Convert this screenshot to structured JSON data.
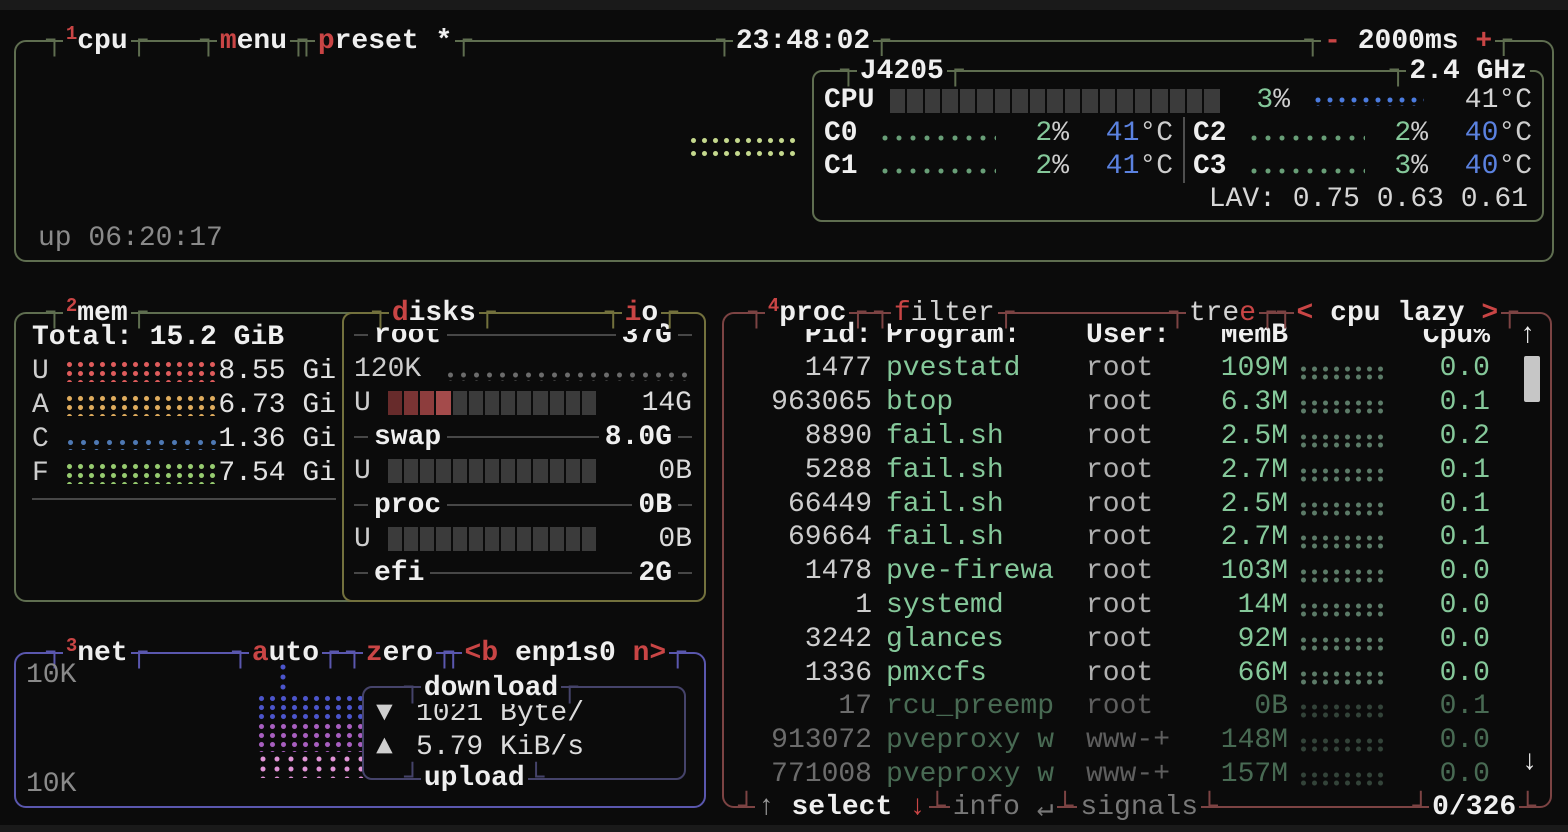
{
  "window": {
    "clock": "23:48:02",
    "interval_minus": "-",
    "interval_value": "2000ms",
    "interval_plus": "+"
  },
  "cpu_box": {
    "tab_key": "1",
    "tab_label": "cpu",
    "menu_hot": "m",
    "menu_rest": "enu",
    "preset_hot": "p",
    "preset_rest": "reset *",
    "uptime": "up 06:20:17",
    "model": "J4205",
    "frequency": "2.4 GHz",
    "total": {
      "label": "CPU",
      "percent_value": "3",
      "percent_sign": "%",
      "temp_value": "41",
      "temp_unit": "°C"
    },
    "cores": [
      {
        "label": "C0",
        "percent_value": "2",
        "percent_sign": "%",
        "temp_value": "41",
        "temp_unit": "°C"
      },
      {
        "label": "C1",
        "percent_value": "2",
        "percent_sign": "%",
        "temp_value": "41",
        "temp_unit": "°C"
      },
      {
        "label": "C2",
        "percent_value": "2",
        "percent_sign": "%",
        "temp_value": "40",
        "temp_unit": "°C"
      },
      {
        "label": "C3",
        "percent_value": "3",
        "percent_sign": "%",
        "temp_value": "40",
        "temp_unit": "°C"
      }
    ],
    "load_avg_label": "LAV:",
    "load_avg_values": "0.75 0.63 0.61"
  },
  "mem_box": {
    "tab_key": "2",
    "tab_label": "mem",
    "total_label": "Total:",
    "total_value": "15.2 GiB",
    "rows": [
      {
        "key": "U",
        "value": "8.55 Gi"
      },
      {
        "key": "A",
        "value": "6.73 Gi"
      },
      {
        "key": "C",
        "value": "1.36 Gi"
      },
      {
        "key": "F",
        "value": "7.54 Gi"
      }
    ]
  },
  "disks_box": {
    "title_hot": "d",
    "title_rest": "isks",
    "io_hot": "i",
    "io_rest": "o",
    "used_key": "U",
    "sections": [
      {
        "name": "root",
        "size": "37G",
        "io": "120K",
        "used": "14G"
      },
      {
        "name": "swap",
        "size": "8.0G",
        "used": "0B"
      },
      {
        "name": "proc",
        "size": "0B",
        "used": "0B"
      },
      {
        "name": "efi",
        "size": "2G"
      }
    ]
  },
  "net_box": {
    "tab_key": "3",
    "tab_label": "net",
    "auto_hot": "a",
    "auto_rest": "uto",
    "zero_hot": "z",
    "zero_rest": "ero",
    "iface_prev": "<b",
    "iface": " enp1s0 ",
    "iface_next": "n>",
    "scale_top": "10K",
    "scale_bottom": "10K",
    "download_label": "download",
    "download_icon": "▼",
    "download_value": "1021 Byte/",
    "upload_label": "upload",
    "upload_icon": "▲",
    "upload_value": "5.79 KiB/s"
  },
  "proc_box": {
    "tab_key": "4",
    "tab_label": "proc",
    "filter_hot": "f",
    "filter_rest": "ilter",
    "tree_head": "tre",
    "tree_hot": "e",
    "sort_prev": "<",
    "sort_label": "cpu lazy",
    "sort_next": ">",
    "columns": {
      "pid": "Pid:",
      "program": "Program:",
      "user": "User:",
      "mem": "MemB",
      "cpu": "Cpu%"
    },
    "scroll_up_icon": "↑",
    "scroll_down_icon": "↓",
    "rows": [
      {
        "pid": "1477",
        "program": "pvestatd",
        "user": "root",
        "mem": "109M",
        "cpu": "0.0",
        "dim": false
      },
      {
        "pid": "963065",
        "program": "btop",
        "user": "root",
        "mem": "6.3M",
        "cpu": "0.1",
        "dim": false
      },
      {
        "pid": "8890",
        "program": "fail.sh",
        "user": "root",
        "mem": "2.5M",
        "cpu": "0.2",
        "dim": false
      },
      {
        "pid": "5288",
        "program": "fail.sh",
        "user": "root",
        "mem": "2.7M",
        "cpu": "0.1",
        "dim": false
      },
      {
        "pid": "66449",
        "program": "fail.sh",
        "user": "root",
        "mem": "2.5M",
        "cpu": "0.1",
        "dim": false
      },
      {
        "pid": "69664",
        "program": "fail.sh",
        "user": "root",
        "mem": "2.7M",
        "cpu": "0.1",
        "dim": false
      },
      {
        "pid": "1478",
        "program": "pve-firewa",
        "user": "root",
        "mem": "103M",
        "cpu": "0.0",
        "dim": false
      },
      {
        "pid": "1",
        "program": "systemd",
        "user": "root",
        "mem": "14M",
        "cpu": "0.0",
        "dim": false
      },
      {
        "pid": "3242",
        "program": "glances",
        "user": "root",
        "mem": "92M",
        "cpu": "0.0",
        "dim": false
      },
      {
        "pid": "1336",
        "program": "pmxcfs",
        "user": "root",
        "mem": "66M",
        "cpu": "0.0",
        "dim": false
      },
      {
        "pid": "17",
        "program": "rcu_preemp",
        "user": "root",
        "mem": "0B",
        "cpu": "0.1",
        "dim": true
      },
      {
        "pid": "913072",
        "program": "pveproxy w",
        "user": "www-+",
        "mem": "148M",
        "cpu": "0.0",
        "dim": true
      },
      {
        "pid": "771008",
        "program": "pveproxy w",
        "user": "www-+",
        "mem": "157M",
        "cpu": "0.0",
        "dim": true
      }
    ],
    "footer": {
      "up_icon": "↑",
      "select_label": "select",
      "down_icon": "↓",
      "info_label": "info",
      "enter_icon": "↵",
      "signals_label": "signals",
      "position": "0/326"
    }
  },
  "colors": {
    "accent_red": "#c94545",
    "value_green": "#85c89a",
    "temp_blue": "#5b82e0",
    "border_cpu_mem": "#5f6e50",
    "border_disks": "#73713d",
    "border_net": "#5a57ae",
    "border_proc": "#7c4343",
    "mem_used_dots": "#e05c5c",
    "mem_available_dots": "#e0ad5e",
    "mem_cached_dots": "#4e79b4",
    "mem_free_dots": "#97cc70",
    "net_download_dots": "#4c55cc",
    "net_upload_dots": "#a85fc0",
    "disk_used_meter": "#a44b4b",
    "meter_empty": "#3b3b3b"
  }
}
